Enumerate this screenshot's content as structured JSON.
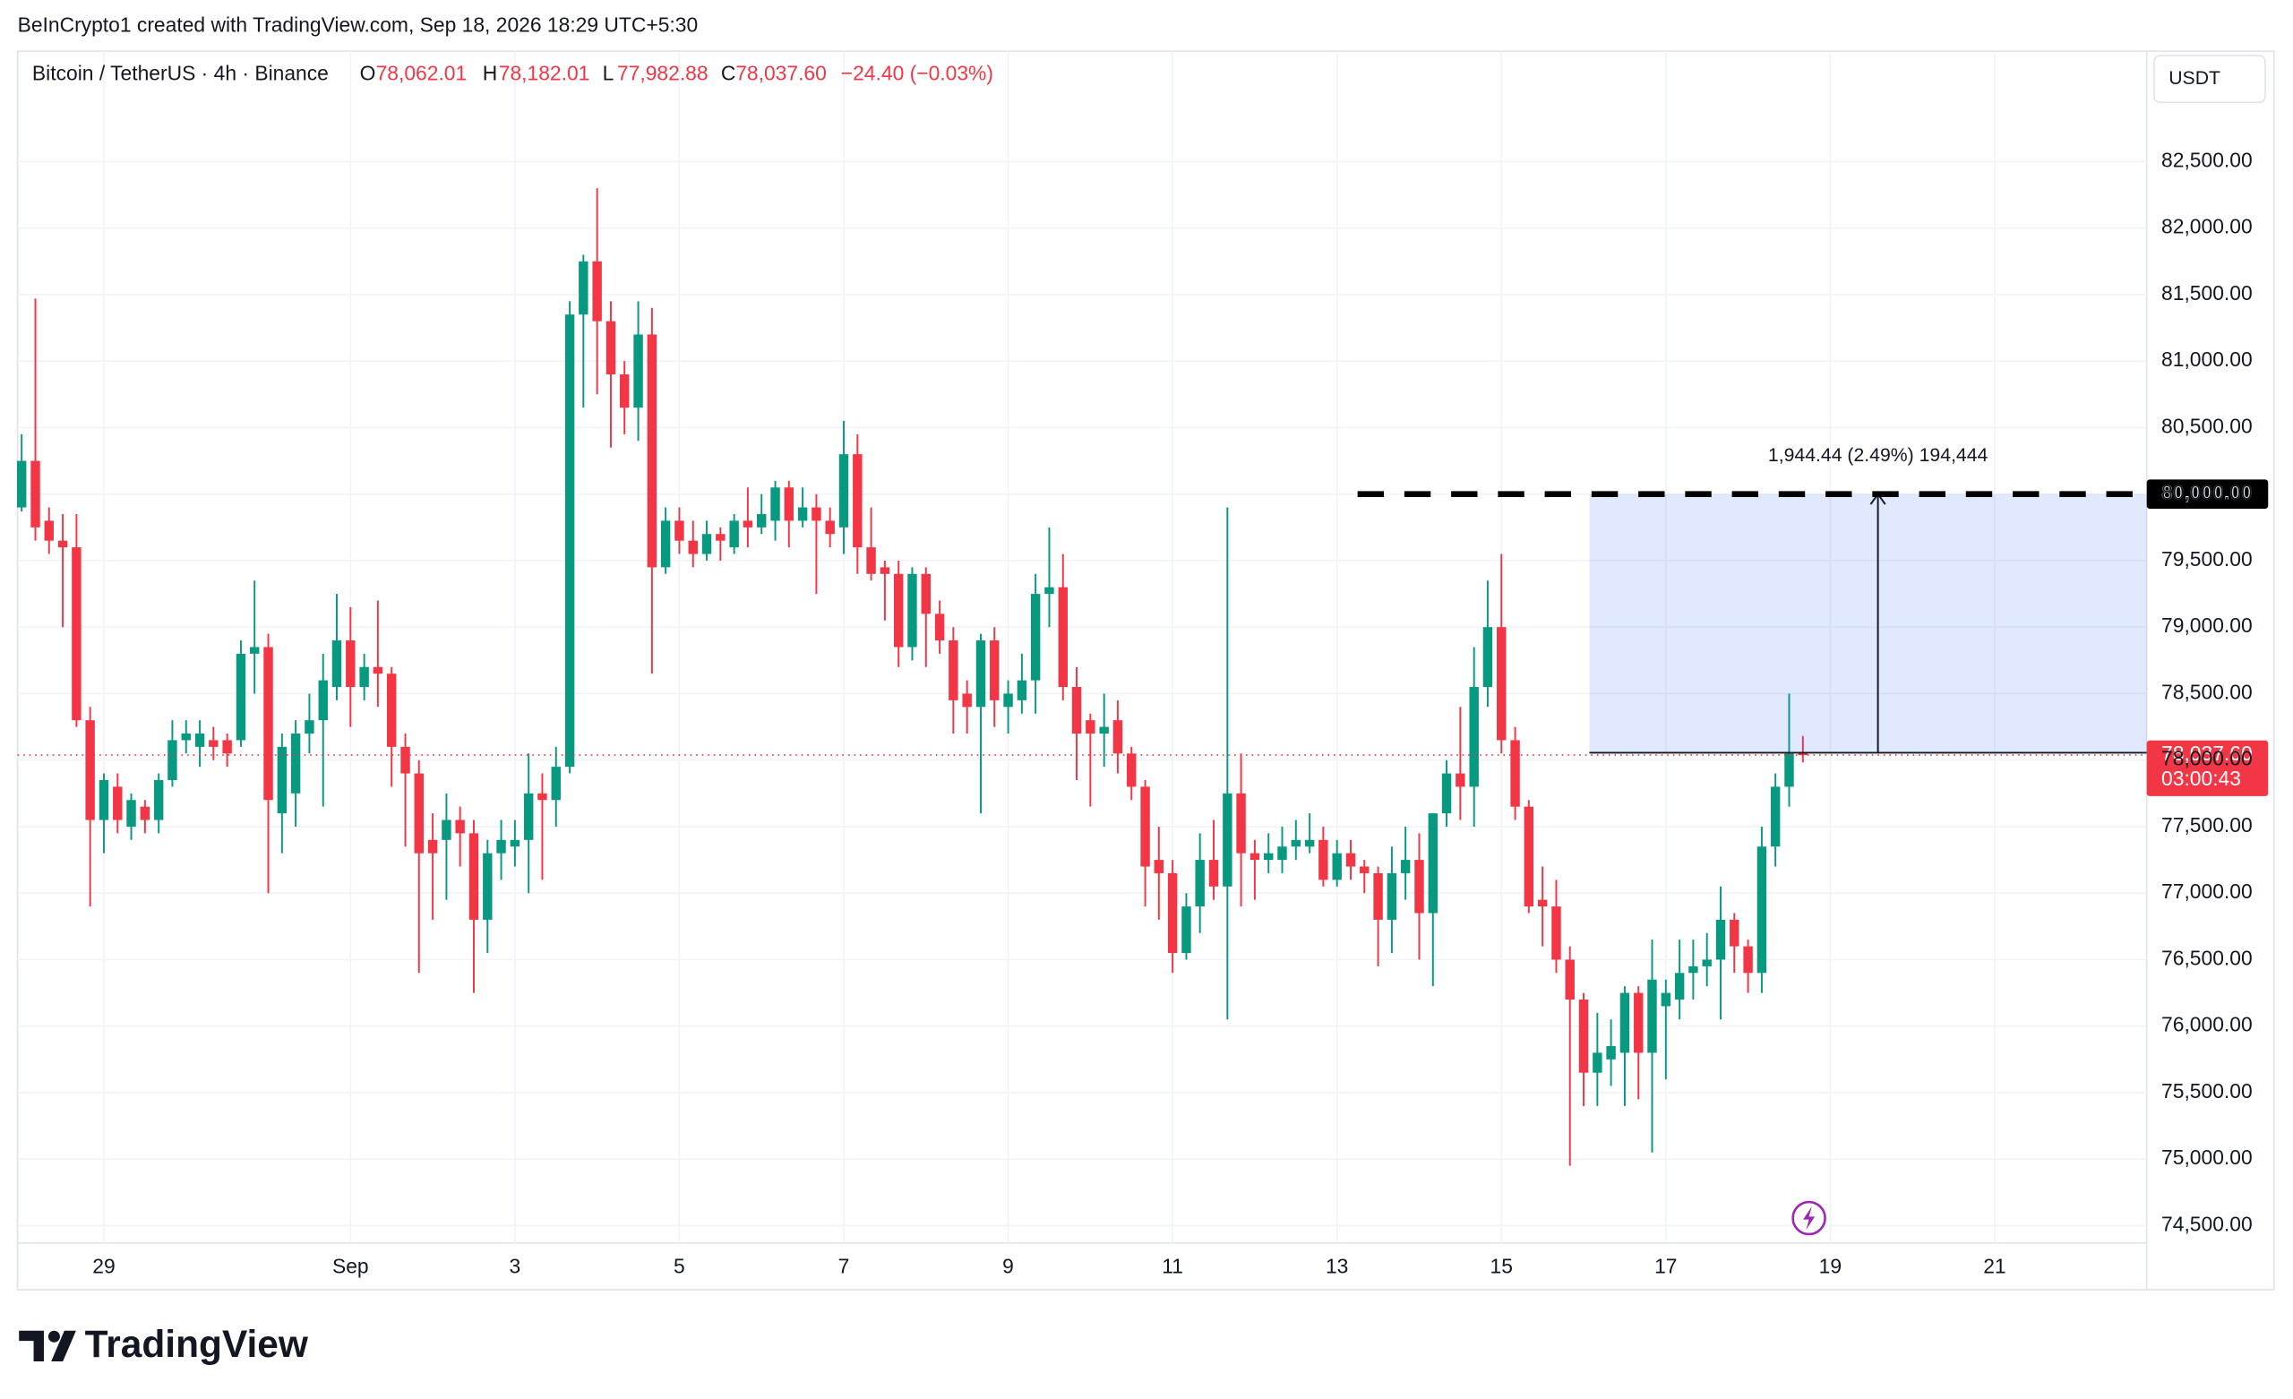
{
  "header": {
    "credit": "BeInCrypto1 created with TradingView.com, Sep 18, 2026 18:29 UTC+5:30"
  },
  "chart_data": {
    "type": "candlestick",
    "symbol": "Bitcoin / TetherUS · 4h · Binance",
    "ohlc_legend": [
      {
        "key": "O",
        "value": "78,062.01"
      },
      {
        "key": "H",
        "value": "78,182.01"
      },
      {
        "key": "L",
        "value": "77,982.88"
      },
      {
        "key": "C",
        "value": "78,037.60"
      }
    ],
    "change": "−24.40 (−0.03%)",
    "currency": "USDT",
    "up_color": "#089981",
    "down_color": "#f23645",
    "x": [
      0,
      0.167,
      0.333,
      0.5,
      0.667,
      0.833,
      1,
      1.167,
      1.333,
      1.5,
      1.667,
      1.833,
      2,
      2.167,
      2.333,
      2.5,
      2.667,
      2.833,
      3,
      3.167,
      3.333,
      3.5,
      3.667,
      3.833,
      4,
      4.167,
      4.333,
      4.5,
      4.667,
      4.833,
      5,
      5.167,
      5.333,
      5.5,
      5.667,
      5.833,
      6,
      6.167,
      6.333,
      6.5,
      6.667,
      6.833,
      7,
      7.167,
      7.333,
      7.5,
      7.667,
      7.833,
      8,
      8.167,
      8.333,
      8.5,
      8.667,
      8.833,
      9,
      9.167,
      9.333,
      9.5,
      9.667,
      9.833,
      10,
      10.167,
      10.333,
      10.5,
      10.667,
      10.833,
      11,
      11.167,
      11.333,
      11.5,
      11.667,
      11.833,
      12,
      12.167,
      12.333,
      12.5,
      12.667,
      12.833,
      13,
      13.167,
      13.333,
      13.5,
      13.667,
      13.833,
      14,
      14.167,
      14.333,
      14.5,
      14.667,
      14.833,
      15,
      15.167,
      15.333,
      15.5,
      15.667,
      15.833,
      16,
      16.167,
      16.333,
      16.5,
      16.667,
      16.833,
      17,
      17.167,
      17.333,
      17.5,
      17.667,
      17.833,
      18,
      18.167,
      18.333,
      18.5,
      18.667,
      18.833,
      19,
      19.167,
      19.333,
      19.5,
      19.667,
      19.833,
      20,
      20.167,
      20.333,
      20.5,
      20.667,
      20.833,
      21,
      21.167,
      21.333,
      21.5,
      21.667
    ],
    "open": [
      79900,
      80250,
      79800,
      79650,
      79600,
      78300,
      77550,
      77800,
      77500,
      77650,
      77550,
      77850,
      78150,
      78100,
      78150,
      78150,
      78150,
      78800,
      78850,
      77600,
      77750,
      78200,
      78300,
      78550,
      78900,
      78550,
      78700,
      78650,
      78100,
      77900,
      77400,
      77400,
      77550,
      77450,
      76800,
      77300,
      77350,
      77400,
      77750,
      77700,
      77950,
      81350,
      81750,
      81300,
      80900,
      80650,
      81200,
      79450,
      79800,
      79650,
      79550,
      79700,
      79600,
      79800,
      79750,
      79800,
      80050,
      79800,
      79900,
      79800,
      79750,
      80300,
      79600,
      79450,
      79400,
      78850,
      79400,
      79100,
      78900,
      78500,
      78400,
      78900,
      78400,
      78450,
      78600,
      79250,
      79300,
      78550,
      78300,
      78200,
      78300,
      78050,
      77800,
      77250,
      77150,
      76550,
      76900,
      77250,
      77050,
      77750,
      77300,
      77250,
      77250,
      77350,
      77350,
      77400,
      77100,
      77300,
      77200,
      77150,
      76800,
      77150,
      77250,
      76850,
      77600,
      77900,
      77800,
      78550,
      79000,
      78150,
      77650,
      76950,
      76900,
      76500,
      76200,
      75650,
      75750,
      75800,
      76250,
      75800,
      76150,
      76200,
      76400,
      76450,
      76500,
      76800,
      76600,
      76400,
      77350,
      77800,
      78062.01
    ],
    "high": [
      80450,
      81470,
      79900,
      79850,
      79850,
      78400,
      77900,
      77900,
      77750,
      77700,
      77900,
      78300,
      78300,
      78300,
      78250,
      78200,
      78900,
      79350,
      78950,
      78200,
      78300,
      78500,
      78800,
      79250,
      79150,
      78800,
      79200,
      78700,
      78200,
      78000,
      77600,
      77750,
      77650,
      77550,
      77400,
      77550,
      77550,
      78050,
      77900,
      78100,
      81450,
      81800,
      82300,
      81450,
      81000,
      81450,
      81400,
      79900,
      79900,
      79800,
      79800,
      79750,
      79850,
      80050,
      80000,
      80100,
      80100,
      80050,
      80000,
      79900,
      80550,
      80450,
      79900,
      79500,
      79500,
      79450,
      79450,
      79200,
      79000,
      78600,
      78950,
      79000,
      78600,
      78800,
      79400,
      79750,
      79550,
      78700,
      78350,
      78500,
      78450,
      78100,
      77850,
      77500,
      77250,
      77000,
      77450,
      77550,
      79900,
      78050,
      77400,
      77450,
      77500,
      77550,
      77600,
      77500,
      77400,
      77400,
      77250,
      77200,
      77350,
      77500,
      77450,
      77600,
      78000,
      78400,
      78850,
      79350,
      79550,
      78250,
      77700,
      77200,
      77100,
      76600,
      76250,
      76100,
      76050,
      76300,
      76300,
      76650,
      76350,
      76650,
      76650,
      76700,
      77050,
      76850,
      76650,
      77500,
      77900,
      78500,
      78182.01
    ],
    "low": [
      79870,
      79650,
      79550,
      79000,
      78250,
      76900,
      77300,
      77450,
      77400,
      77450,
      77450,
      77800,
      78050,
      77950,
      78000,
      77950,
      78100,
      78500,
      77000,
      77300,
      77500,
      78050,
      77650,
      78450,
      78250,
      78450,
      78400,
      77800,
      77350,
      76400,
      76800,
      76950,
      77200,
      76250,
      76550,
      77100,
      77200,
      77000,
      77100,
      77500,
      77900,
      80650,
      80750,
      80350,
      80450,
      80400,
      78650,
      79400,
      79550,
      79450,
      79500,
      79500,
      79550,
      79600,
      79700,
      79650,
      79600,
      79750,
      79250,
      79600,
      79550,
      79400,
      79350,
      79050,
      78700,
      78750,
      78700,
      78800,
      78200,
      78200,
      77600,
      78250,
      78200,
      78350,
      78350,
      79000,
      78450,
      77850,
      77650,
      77950,
      77900,
      77700,
      76900,
      76800,
      76400,
      76500,
      76700,
      76950,
      76050,
      76900,
      76950,
      77150,
      77150,
      77250,
      77300,
      77050,
      77050,
      77100,
      77000,
      76450,
      76550,
      76950,
      76500,
      76300,
      77500,
      77550,
      77500,
      78400,
      78050,
      77550,
      76850,
      76600,
      76400,
      74950,
      75400,
      75400,
      75550,
      75400,
      75450,
      75050,
      75600,
      76050,
      76200,
      76300,
      76050,
      76400,
      76250,
      76250,
      77200,
      77650,
      77982.88
    ],
    "close": [
      80250,
      79750,
      79650,
      79600,
      78300,
      77550,
      77850,
      77550,
      77700,
      77550,
      77850,
      78150,
      78200,
      78200,
      78100,
      78050,
      78800,
      78850,
      77700,
      78100,
      78200,
      78300,
      78600,
      78900,
      78550,
      78700,
      78650,
      78100,
      77900,
      77300,
      77300,
      77550,
      77450,
      76800,
      77300,
      77400,
      77400,
      77750,
      77700,
      77950,
      81350,
      81750,
      81300,
      80900,
      80650,
      81200,
      79450,
      79800,
      79650,
      79550,
      79700,
      79650,
      79800,
      79750,
      79850,
      80050,
      79800,
      79900,
      79800,
      79700,
      80300,
      79600,
      79400,
      79400,
      78850,
      79400,
      79100,
      78900,
      78450,
      78400,
      78900,
      78450,
      78500,
      78600,
      79250,
      79300,
      78550,
      78200,
      78200,
      78250,
      78050,
      77800,
      77200,
      77150,
      76550,
      76900,
      77250,
      77050,
      77750,
      77300,
      77250,
      77300,
      77350,
      77400,
      77400,
      77100,
      77300,
      77200,
      77150,
      76800,
      77150,
      77250,
      76850,
      77600,
      77900,
      77800,
      78550,
      79000,
      78150,
      77650,
      76900,
      76900,
      76500,
      76200,
      75650,
      75800,
      75850,
      76250,
      75800,
      76350,
      76250,
      76400,
      76450,
      76500,
      76800,
      76600,
      76400,
      77350,
      77800,
      78050,
      78037.6
    ],
    "xlim": [
      -0.05,
      25.85
    ],
    "xticks": [
      {
        "value": 1,
        "label": "29"
      },
      {
        "value": 4,
        "label": "Sep"
      },
      {
        "value": 6,
        "label": "3"
      },
      {
        "value": 8,
        "label": "5"
      },
      {
        "value": 10,
        "label": "7"
      },
      {
        "value": 12,
        "label": "9"
      },
      {
        "value": 14,
        "label": "11"
      },
      {
        "value": 16,
        "label": "13"
      },
      {
        "value": 18,
        "label": "15"
      },
      {
        "value": 20,
        "label": "17"
      },
      {
        "value": 22,
        "label": "19"
      },
      {
        "value": 24,
        "label": "21"
      }
    ],
    "ylim": [
      74370,
      83330
    ],
    "yticks": [
      {
        "value": 74500,
        "label": "74,500.00"
      },
      {
        "value": 75000,
        "label": "75,000.00"
      },
      {
        "value": 75500,
        "label": "75,500.00"
      },
      {
        "value": 76000,
        "label": "76,000.00"
      },
      {
        "value": 76500,
        "label": "76,500.00"
      },
      {
        "value": 77000,
        "label": "77,000.00"
      },
      {
        "value": 77500,
        "label": "77,500.00"
      },
      {
        "value": 78000,
        "label": "78,000.00"
      },
      {
        "value": 78500,
        "label": "78,500.00"
      },
      {
        "value": 79000,
        "label": "79,000.00"
      },
      {
        "value": 79500,
        "label": "79,500.00"
      },
      {
        "value": 80000,
        "label": "80,000.00"
      },
      {
        "value": 80500,
        "label": "80,500.00"
      },
      {
        "value": 81000,
        "label": "81,000.00"
      },
      {
        "value": 81500,
        "label": "81,500.00"
      },
      {
        "value": 82000,
        "label": "82,000.00"
      },
      {
        "value": 82500,
        "label": "82,500.00"
      }
    ],
    "grid": true,
    "last_price": {
      "value": 78037.6,
      "label": "78,037.60",
      "countdown": "03:00:43"
    },
    "target_level": {
      "value": 80000,
      "label": "80,000.00",
      "from_x": 16.25
    },
    "measure": {
      "from_x": 19.07,
      "arrow_x": 22.58,
      "low": 78055.56,
      "high": 80000,
      "label": "1,944.44 (2.49%) 194,444"
    }
  },
  "footer": {
    "logo": "TradingView"
  }
}
